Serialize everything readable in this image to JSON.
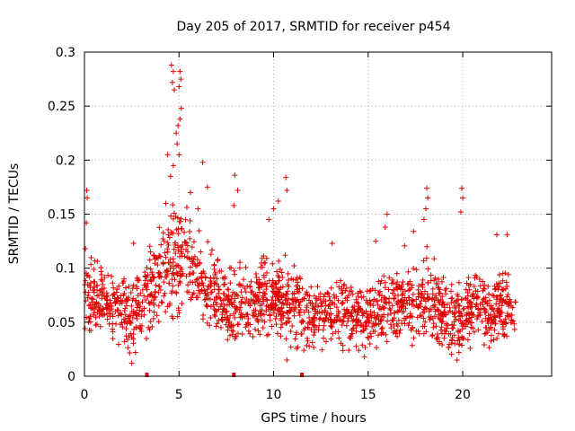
{
  "chart_data": {
    "type": "scatter",
    "title": "Day 205 of 2017, SRMTID for receiver p454",
    "xlabel": "GPS time / hours",
    "ylabel": "SRMTID / TECUs",
    "xlim": [
      0,
      24.7
    ],
    "ylim": [
      0,
      0.3
    ],
    "x_ticks": [
      {
        "value": 0,
        "label": "0"
      },
      {
        "value": 5,
        "label": "5"
      },
      {
        "value": 10,
        "label": "10"
      },
      {
        "value": 15,
        "label": "15"
      },
      {
        "value": 20,
        "label": "20"
      }
    ],
    "y_ticks": [
      {
        "value": 0,
        "label": "0"
      },
      {
        "value": 0.05,
        "label": "0.05"
      },
      {
        "value": 0.1,
        "label": "0.1"
      },
      {
        "value": 0.15,
        "label": "0.15"
      },
      {
        "value": 0.2,
        "label": "0.2"
      },
      {
        "value": 0.25,
        "label": "0.25"
      },
      {
        "value": 0.3,
        "label": "0.3"
      }
    ],
    "grid": true,
    "series_color": "#e00000",
    "marker": "plus",
    "x_range_hours": [
      0.0,
      22.8
    ],
    "approx_point_count": 1900,
    "baseline_profile": [
      {
        "x": 0.0,
        "median": 0.075,
        "spread": 0.025
      },
      {
        "x": 1.0,
        "median": 0.07,
        "spread": 0.022
      },
      {
        "x": 2.0,
        "median": 0.065,
        "spread": 0.022
      },
      {
        "x": 2.6,
        "median": 0.055,
        "spread": 0.025
      },
      {
        "x": 3.5,
        "median": 0.08,
        "spread": 0.03
      },
      {
        "x": 4.5,
        "median": 0.1,
        "spread": 0.04
      },
      {
        "x": 5.0,
        "median": 0.115,
        "spread": 0.045
      },
      {
        "x": 5.5,
        "median": 0.11,
        "spread": 0.04
      },
      {
        "x": 6.5,
        "median": 0.085,
        "spread": 0.03
      },
      {
        "x": 7.5,
        "median": 0.065,
        "spread": 0.025
      },
      {
        "x": 9.0,
        "median": 0.07,
        "spread": 0.028
      },
      {
        "x": 10.0,
        "median": 0.075,
        "spread": 0.03
      },
      {
        "x": 11.0,
        "median": 0.065,
        "spread": 0.028
      },
      {
        "x": 12.0,
        "median": 0.058,
        "spread": 0.022
      },
      {
        "x": 14.0,
        "median": 0.06,
        "spread": 0.024
      },
      {
        "x": 15.0,
        "median": 0.055,
        "spread": 0.022
      },
      {
        "x": 16.0,
        "median": 0.065,
        "spread": 0.025
      },
      {
        "x": 17.0,
        "median": 0.07,
        "spread": 0.028
      },
      {
        "x": 18.0,
        "median": 0.07,
        "spread": 0.03
      },
      {
        "x": 19.5,
        "median": 0.05,
        "spread": 0.025
      },
      {
        "x": 20.5,
        "median": 0.065,
        "spread": 0.025
      },
      {
        "x": 21.5,
        "median": 0.06,
        "spread": 0.025
      },
      {
        "x": 22.8,
        "median": 0.07,
        "spread": 0.028
      }
    ],
    "peak_points": [
      {
        "x": 4.6,
        "y": 0.288
      },
      {
        "x": 4.7,
        "y": 0.282
      },
      {
        "x": 4.65,
        "y": 0.272
      },
      {
        "x": 4.75,
        "y": 0.265
      },
      {
        "x": 5.05,
        "y": 0.282
      },
      {
        "x": 5.1,
        "y": 0.275
      },
      {
        "x": 5.0,
        "y": 0.268
      },
      {
        "x": 5.12,
        "y": 0.248
      },
      {
        "x": 5.05,
        "y": 0.238
      },
      {
        "x": 4.85,
        "y": 0.225
      },
      {
        "x": 4.95,
        "y": 0.232
      },
      {
        "x": 4.9,
        "y": 0.215
      },
      {
        "x": 4.4,
        "y": 0.205
      },
      {
        "x": 4.55,
        "y": 0.185
      },
      {
        "x": 5.0,
        "y": 0.205
      },
      {
        "x": 4.7,
        "y": 0.195
      },
      {
        "x": 6.25,
        "y": 0.198
      },
      {
        "x": 6.5,
        "y": 0.175
      },
      {
        "x": 7.95,
        "y": 0.186
      },
      {
        "x": 8.1,
        "y": 0.172
      },
      {
        "x": 7.9,
        "y": 0.158
      },
      {
        "x": 10.65,
        "y": 0.184
      },
      {
        "x": 10.7,
        "y": 0.172
      },
      {
        "x": 10.25,
        "y": 0.162
      },
      {
        "x": 9.75,
        "y": 0.145
      },
      {
        "x": 10.0,
        "y": 0.155
      },
      {
        "x": 0.12,
        "y": 0.172
      },
      {
        "x": 0.15,
        "y": 0.165
      },
      {
        "x": 0.1,
        "y": 0.142
      },
      {
        "x": 0.05,
        "y": 0.118
      },
      {
        "x": 18.1,
        "y": 0.174
      },
      {
        "x": 18.15,
        "y": 0.165
      },
      {
        "x": 18.05,
        "y": 0.155
      },
      {
        "x": 17.95,
        "y": 0.145
      },
      {
        "x": 19.95,
        "y": 0.174
      },
      {
        "x": 20.0,
        "y": 0.165
      },
      {
        "x": 19.9,
        "y": 0.152
      },
      {
        "x": 16.0,
        "y": 0.15
      },
      {
        "x": 15.9,
        "y": 0.138
      },
      {
        "x": 15.4,
        "y": 0.125
      },
      {
        "x": 13.1,
        "y": 0.123
      },
      {
        "x": 2.6,
        "y": 0.123
      },
      {
        "x": 4.3,
        "y": 0.16
      },
      {
        "x": 5.6,
        "y": 0.17
      },
      {
        "x": 6.0,
        "y": 0.155
      },
      {
        "x": 21.8,
        "y": 0.131
      },
      {
        "x": 22.35,
        "y": 0.131
      },
      {
        "x": 17.4,
        "y": 0.134
      }
    ],
    "low_points": [
      {
        "x": 2.5,
        "y": 0.012
      },
      {
        "x": 10.7,
        "y": 0.015
      },
      {
        "x": 14.8,
        "y": 0.018
      },
      {
        "x": 19.7,
        "y": 0.015
      },
      {
        "x": 19.8,
        "y": 0.022
      },
      {
        "x": 2.7,
        "y": 0.022
      },
      {
        "x": 14.5,
        "y": 0.024
      },
      {
        "x": 11.6,
        "y": 0.024
      }
    ],
    "gap_markers": [
      3.3,
      7.9,
      11.5
    ]
  }
}
